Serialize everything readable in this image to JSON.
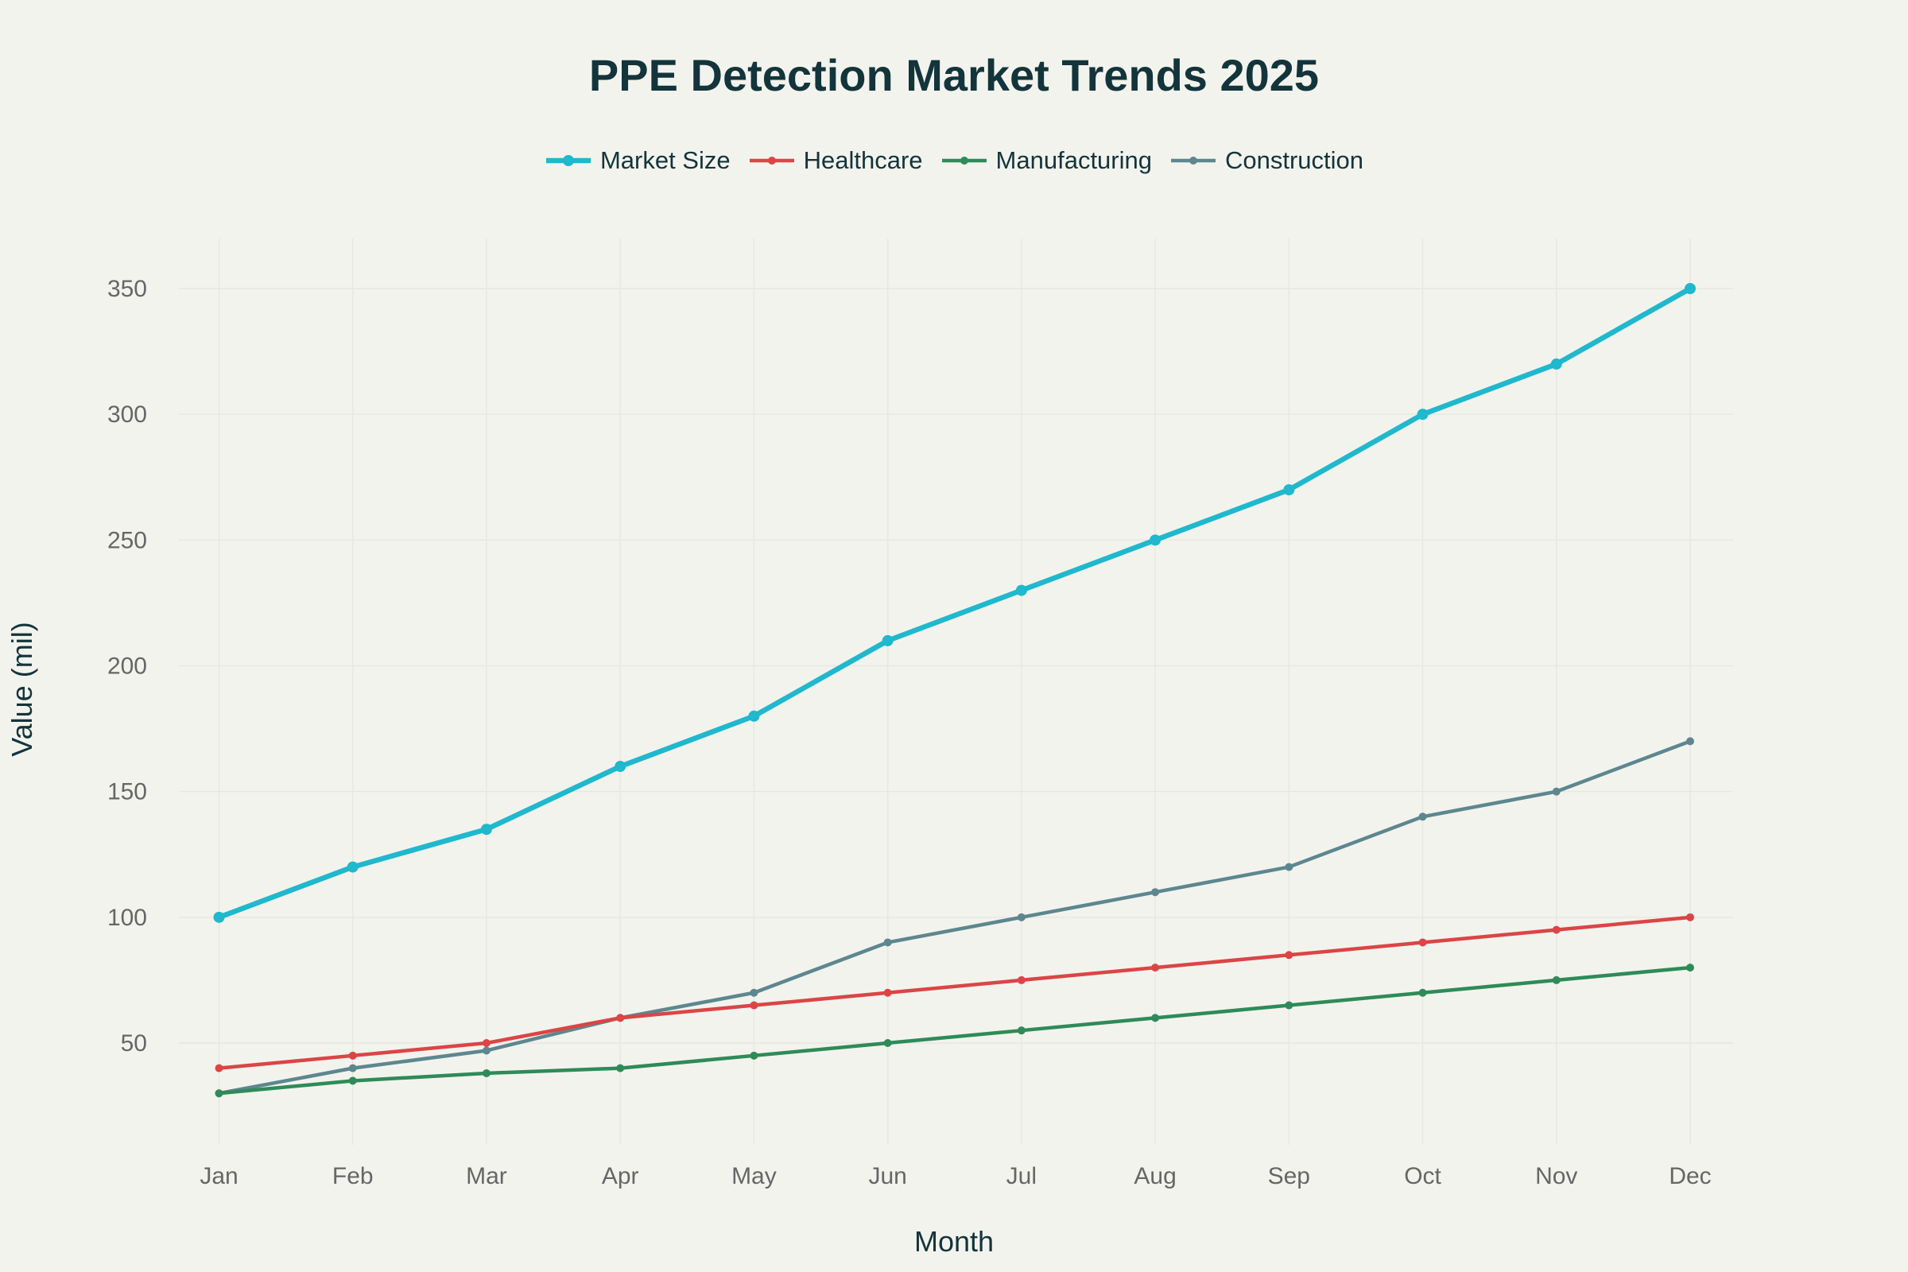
{
  "chart_data": {
    "type": "line",
    "title": "PPE Detection Market Trends 2025",
    "xlabel": "Month",
    "ylabel": "Value (mil)",
    "categories": [
      "Jan",
      "Feb",
      "Mar",
      "Apr",
      "May",
      "Jun",
      "Jul",
      "Aug",
      "Sep",
      "Oct",
      "Nov",
      "Dec"
    ],
    "ylim": [
      10,
      370
    ],
    "yticks": [
      50,
      100,
      150,
      200,
      250,
      300,
      350
    ],
    "grid": true,
    "legend_position": "top-center",
    "series": [
      {
        "name": "Market Size",
        "color": "#1FB8CD",
        "values": [
          100,
          120,
          135,
          160,
          180,
          210,
          230,
          250,
          270,
          300,
          320,
          350
        ]
      },
      {
        "name": "Healthcare",
        "color": "#DB4545",
        "values": [
          40,
          45,
          50,
          60,
          65,
          70,
          75,
          80,
          85,
          90,
          95,
          100
        ]
      },
      {
        "name": "Manufacturing",
        "color": "#2E8B57",
        "values": [
          30,
          35,
          38,
          40,
          45,
          50,
          55,
          60,
          65,
          70,
          75,
          80
        ]
      },
      {
        "name": "Construction",
        "color": "#5D878F",
        "values": [
          30,
          40,
          47,
          60,
          70,
          90,
          100,
          110,
          120,
          140,
          150,
          170
        ]
      }
    ]
  }
}
